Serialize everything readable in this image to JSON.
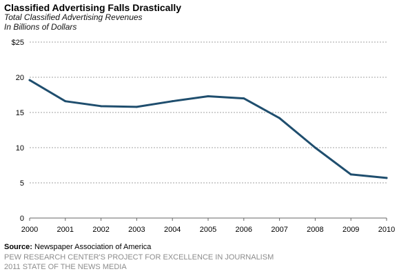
{
  "header": {
    "title": "Classified Advertising Falls Drastically",
    "subtitle_line1": "Total Classified Advertising Revenues",
    "subtitle_line2": "In Billions of Dollars"
  },
  "footer": {
    "source_label": "Source:",
    "source_text": "Newspaper Association of America",
    "organization": "PEW RESEARCH CENTER'S PROJECT FOR EXCELLENCE IN JOURNALISM",
    "report": "2011 STATE OF THE NEWS MEDIA"
  },
  "chart_data": {
    "type": "line",
    "title": "Classified Advertising Falls Drastically",
    "subtitle": "Total Classified Advertising Revenues In Billions of Dollars",
    "x": [
      "2000",
      "2001",
      "2002",
      "2003",
      "2004",
      "2005",
      "2006",
      "2007",
      "2008",
      "2009",
      "2010"
    ],
    "series": [
      {
        "values": [
          19.6,
          16.6,
          15.9,
          15.8,
          16.6,
          17.3,
          17.0,
          14.2,
          10.0,
          6.2,
          5.7
        ],
        "color": "#1f4e6e"
      }
    ],
    "y_ticks": [
      0,
      5,
      10,
      15,
      20,
      25
    ],
    "y_tick_labels": [
      "0",
      "5",
      "10",
      "15",
      "20",
      "$25"
    ],
    "ylim": [
      0,
      25
    ],
    "grid": "horizontal dotted",
    "legend": "none",
    "colors": {
      "line": "#1f4e6e",
      "grid": "#a0a0a0",
      "axis": "#666666"
    }
  }
}
